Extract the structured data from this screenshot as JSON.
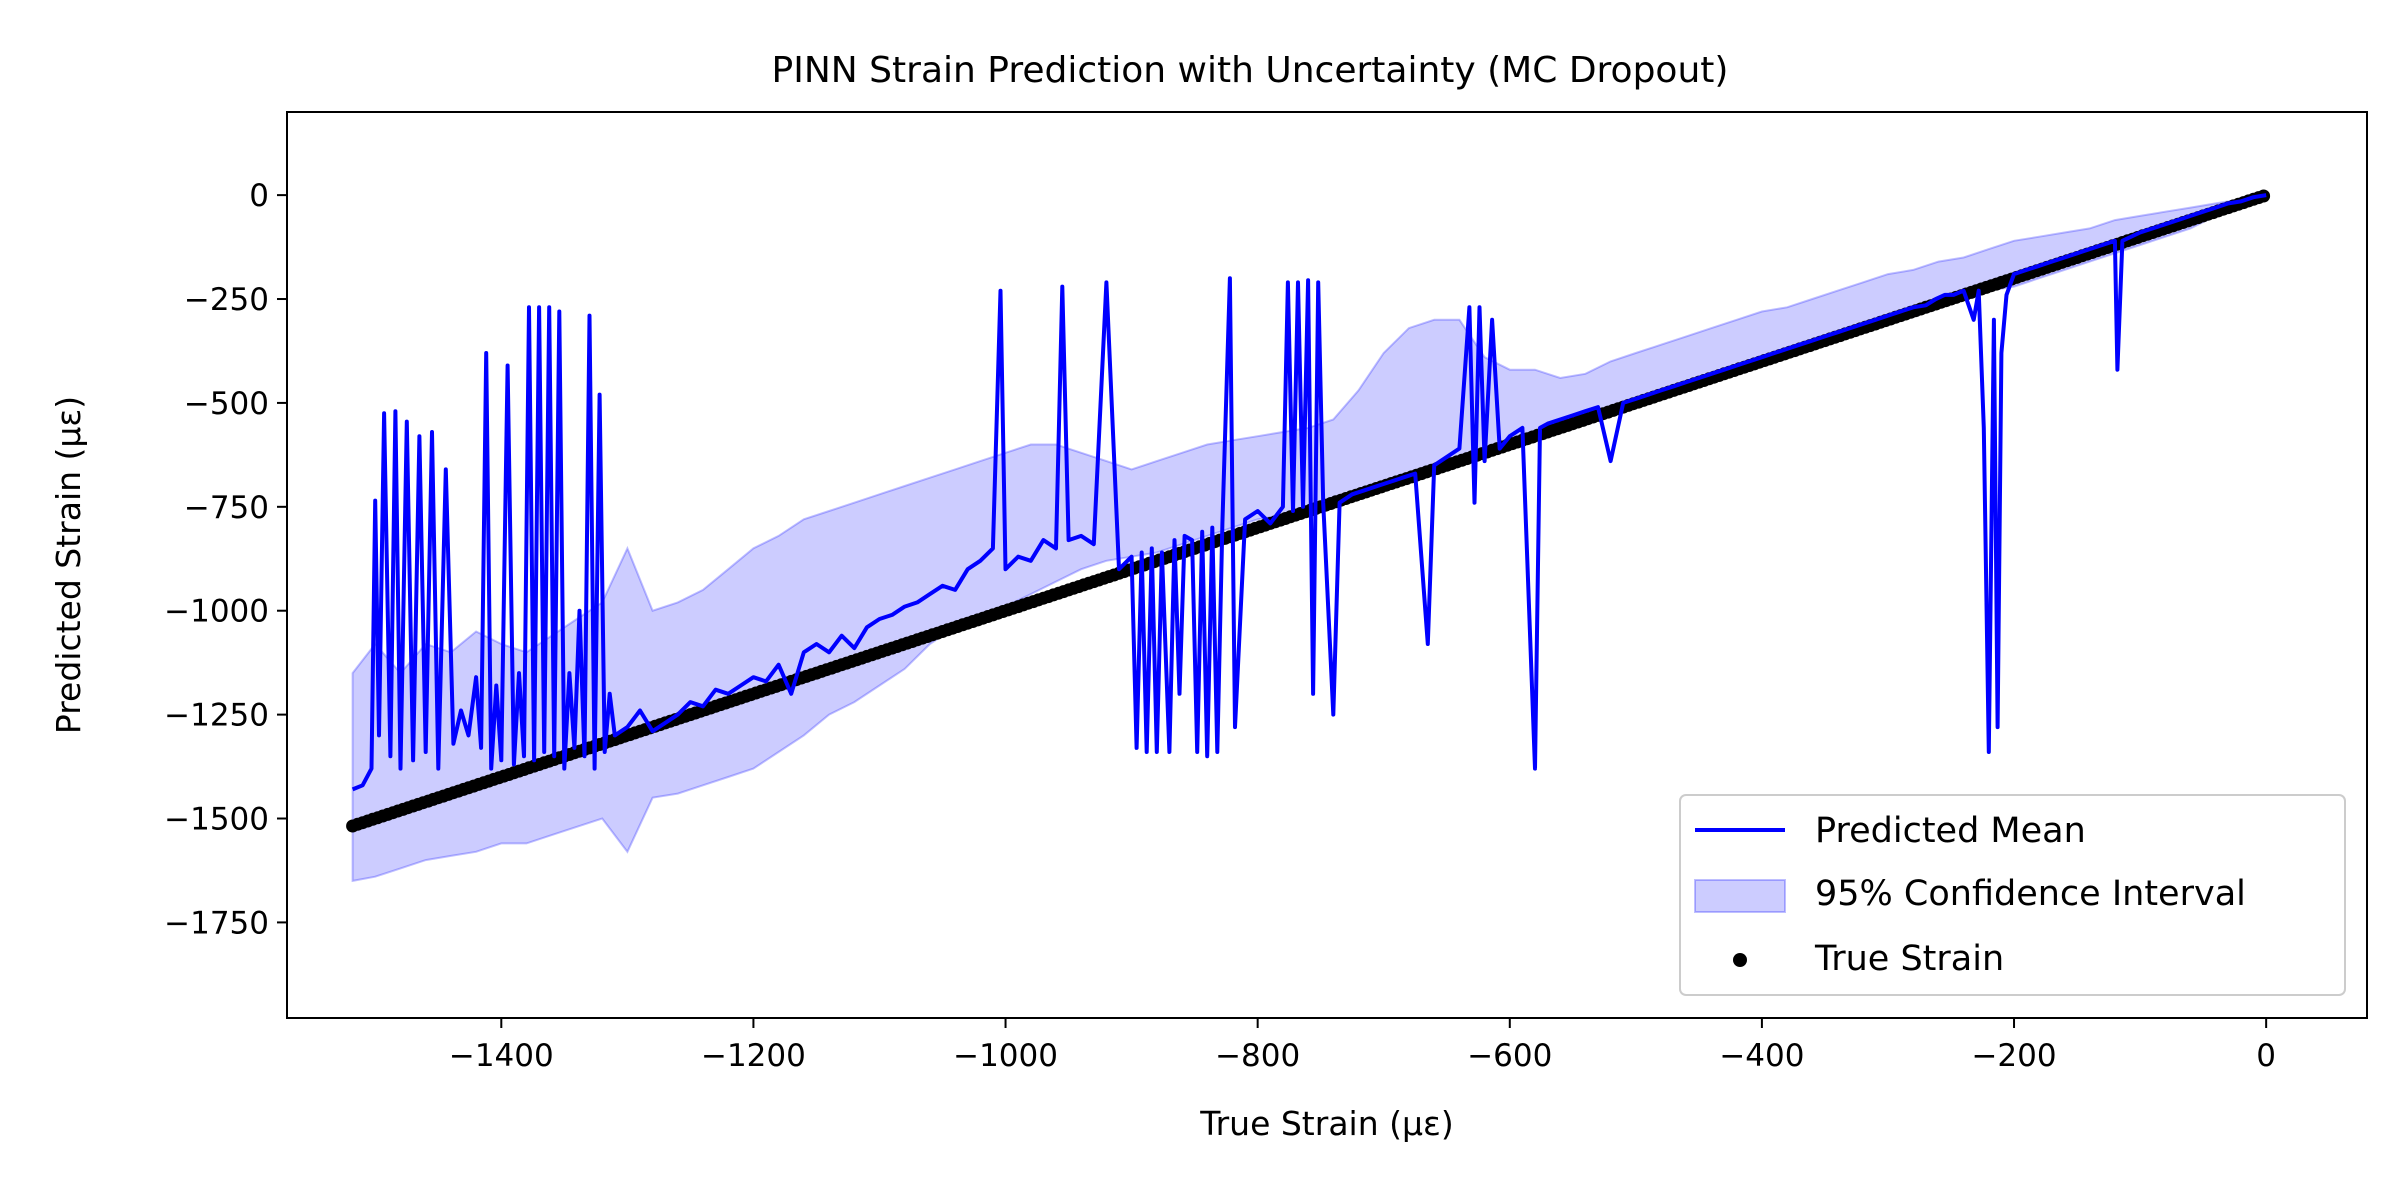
{
  "chart_data": {
    "type": "line",
    "title": "PINN Strain Prediction with Uncertainty (MC Dropout)",
    "xlabel": "True Strain (μɛ)",
    "ylabel": "Predicted Strain (μɛ)",
    "xlim": [
      -1570,
      80
    ],
    "ylim": [
      -1980,
      200
    ],
    "x_ticks": [
      -1400,
      -1200,
      -1000,
      -800,
      -600,
      -400,
      -200,
      0
    ],
    "y_ticks": [
      0,
      -250,
      -500,
      -750,
      -1000,
      -1250,
      -1500,
      -1750
    ],
    "x_tick_labels": [
      "−1400",
      "−1200",
      "−1000",
      "−800",
      "−600",
      "−400",
      "−200",
      "0"
    ],
    "y_tick_labels": [
      "0",
      "−250",
      "−500",
      "−750",
      "−1000",
      "−1250",
      "−1500",
      "−1750"
    ],
    "grid": false,
    "legend_position": "lower-right",
    "legend": [
      "Predicted Mean",
      "95% Confidence Interval",
      "True Strain"
    ],
    "colors": {
      "mean": "#0000ff",
      "ci": "#0000ff",
      "true": "#000000"
    },
    "series": [
      {
        "name": "Predicted Mean",
        "kind": "line",
        "points": [
          [
            -1518,
            -1430
          ],
          [
            -1510,
            -1420
          ],
          [
            -1503,
            -1380
          ],
          [
            -1500,
            -735
          ],
          [
            -1497,
            -1300
          ],
          [
            -1493,
            -525
          ],
          [
            -1488,
            -1350
          ],
          [
            -1484,
            -520
          ],
          [
            -1480,
            -1380
          ],
          [
            -1475,
            -545
          ],
          [
            -1470,
            -1360
          ],
          [
            -1465,
            -580
          ],
          [
            -1460,
            -1340
          ],
          [
            -1455,
            -570
          ],
          [
            -1450,
            -1380
          ],
          [
            -1444,
            -660
          ],
          [
            -1438,
            -1320
          ],
          [
            -1432,
            -1240
          ],
          [
            -1426,
            -1300
          ],
          [
            -1420,
            -1160
          ],
          [
            -1416,
            -1330
          ],
          [
            -1412,
            -380
          ],
          [
            -1408,
            -1380
          ],
          [
            -1404,
            -1180
          ],
          [
            -1400,
            -1360
          ],
          [
            -1395,
            -410
          ],
          [
            -1390,
            -1370
          ],
          [
            -1386,
            -1150
          ],
          [
            -1382,
            -1350
          ],
          [
            -1378,
            -270
          ],
          [
            -1374,
            -1360
          ],
          [
            -1370,
            -270
          ],
          [
            -1366,
            -1340
          ],
          [
            -1362,
            -270
          ],
          [
            -1358,
            -1350
          ],
          [
            -1354,
            -280
          ],
          [
            -1350,
            -1380
          ],
          [
            -1346,
            -1150
          ],
          [
            -1342,
            -1330
          ],
          [
            -1338,
            -1000
          ],
          [
            -1334,
            -1350
          ],
          [
            -1330,
            -290
          ],
          [
            -1326,
            -1380
          ],
          [
            -1322,
            -480
          ],
          [
            -1318,
            -1340
          ],
          [
            -1314,
            -1200
          ],
          [
            -1310,
            -1300
          ],
          [
            -1300,
            -1280
          ],
          [
            -1290,
            -1240
          ],
          [
            -1280,
            -1290
          ],
          [
            -1270,
            -1270
          ],
          [
            -1260,
            -1250
          ],
          [
            -1250,
            -1220
          ],
          [
            -1240,
            -1230
          ],
          [
            -1230,
            -1190
          ],
          [
            -1220,
            -1200
          ],
          [
            -1210,
            -1180
          ],
          [
            -1200,
            -1160
          ],
          [
            -1190,
            -1170
          ],
          [
            -1180,
            -1130
          ],
          [
            -1170,
            -1200
          ],
          [
            -1160,
            -1100
          ],
          [
            -1150,
            -1080
          ],
          [
            -1140,
            -1100
          ],
          [
            -1130,
            -1060
          ],
          [
            -1120,
            -1090
          ],
          [
            -1110,
            -1040
          ],
          [
            -1100,
            -1020
          ],
          [
            -1090,
            -1010
          ],
          [
            -1080,
            -990
          ],
          [
            -1070,
            -980
          ],
          [
            -1060,
            -960
          ],
          [
            -1050,
            -940
          ],
          [
            -1040,
            -950
          ],
          [
            -1030,
            -900
          ],
          [
            -1020,
            -880
          ],
          [
            -1010,
            -850
          ],
          [
            -1004,
            -230
          ],
          [
            -1000,
            -900
          ],
          [
            -990,
            -870
          ],
          [
            -980,
            -880
          ],
          [
            -970,
            -830
          ],
          [
            -960,
            -850
          ],
          [
            -955,
            -220
          ],
          [
            -950,
            -830
          ],
          [
            -940,
            -820
          ],
          [
            -930,
            -840
          ],
          [
            -920,
            -210
          ],
          [
            -910,
            -900
          ],
          [
            -900,
            -870
          ],
          [
            -896,
            -1330
          ],
          [
            -892,
            -860
          ],
          [
            -888,
            -1340
          ],
          [
            -884,
            -850
          ],
          [
            -880,
            -1340
          ],
          [
            -876,
            -860
          ],
          [
            -870,
            -1340
          ],
          [
            -866,
            -830
          ],
          [
            -862,
            -1200
          ],
          [
            -858,
            -820
          ],
          [
            -852,
            -830
          ],
          [
            -848,
            -1340
          ],
          [
            -844,
            -810
          ],
          [
            -840,
            -1350
          ],
          [
            -836,
            -800
          ],
          [
            -832,
            -1340
          ],
          [
            -828,
            -790
          ],
          [
            -822,
            -200
          ],
          [
            -818,
            -1280
          ],
          [
            -810,
            -780
          ],
          [
            -800,
            -760
          ],
          [
            -790,
            -790
          ],
          [
            -780,
            -750
          ],
          [
            -776,
            -210
          ],
          [
            -772,
            -760
          ],
          [
            -768,
            -210
          ],
          [
            -764,
            -750
          ],
          [
            -760,
            -205
          ],
          [
            -756,
            -1200
          ],
          [
            -752,
            -210
          ],
          [
            -748,
            -740
          ],
          [
            -740,
            -1250
          ],
          [
            -735,
            -740
          ],
          [
            -725,
            -720
          ],
          [
            -715,
            -710
          ],
          [
            -705,
            -700
          ],
          [
            -695,
            -690
          ],
          [
            -685,
            -680
          ],
          [
            -675,
            -670
          ],
          [
            -665,
            -1080
          ],
          [
            -660,
            -650
          ],
          [
            -650,
            -630
          ],
          [
            -640,
            -610
          ],
          [
            -632,
            -270
          ],
          [
            -628,
            -740
          ],
          [
            -624,
            -270
          ],
          [
            -620,
            -640
          ],
          [
            -614,
            -300
          ],
          [
            -608,
            -610
          ],
          [
            -600,
            -580
          ],
          [
            -590,
            -560
          ],
          [
            -580,
            -1380
          ],
          [
            -576,
            -560
          ],
          [
            -570,
            -550
          ],
          [
            -560,
            -540
          ],
          [
            -550,
            -530
          ],
          [
            -540,
            -520
          ],
          [
            -530,
            -510
          ],
          [
            -520,
            -640
          ],
          [
            -510,
            -500
          ],
          [
            -500,
            -490
          ],
          [
            -490,
            -480
          ],
          [
            -480,
            -470
          ],
          [
            -470,
            -460
          ],
          [
            -460,
            -450
          ],
          [
            -450,
            -440
          ],
          [
            -440,
            -430
          ],
          [
            -430,
            -420
          ],
          [
            -420,
            -410
          ],
          [
            -410,
            -400
          ],
          [
            -400,
            -390
          ],
          [
            -390,
            -380
          ],
          [
            -380,
            -370
          ],
          [
            -370,
            -360
          ],
          [
            -360,
            -350
          ],
          [
            -350,
            -340
          ],
          [
            -340,
            -330
          ],
          [
            -330,
            -320
          ],
          [
            -320,
            -310
          ],
          [
            -310,
            -300
          ],
          [
            -300,
            -290
          ],
          [
            -290,
            -280
          ],
          [
            -280,
            -270
          ],
          [
            -270,
            -265
          ],
          [
            -262,
            -250
          ],
          [
            -255,
            -240
          ],
          [
            -248,
            -240
          ],
          [
            -240,
            -230
          ],
          [
            -232,
            -300
          ],
          [
            -228,
            -230
          ],
          [
            -224,
            -560
          ],
          [
            -220,
            -1340
          ],
          [
            -216,
            -300
          ],
          [
            -213,
            -1280
          ],
          [
            -210,
            -380
          ],
          [
            -206,
            -240
          ],
          [
            -200,
            -190
          ],
          [
            -190,
            -180
          ],
          [
            -180,
            -170
          ],
          [
            -170,
            -160
          ],
          [
            -160,
            -150
          ],
          [
            -150,
            -140
          ],
          [
            -140,
            -130
          ],
          [
            -130,
            -120
          ],
          [
            -120,
            -110
          ],
          [
            -118,
            -420
          ],
          [
            -114,
            -110
          ],
          [
            -100,
            -90
          ],
          [
            -90,
            -80
          ],
          [
            -80,
            -70
          ],
          [
            -70,
            -60
          ],
          [
            -60,
            -50
          ],
          [
            -50,
            -40
          ],
          [
            -40,
            -30
          ],
          [
            -30,
            -20
          ],
          [
            -20,
            -15
          ],
          [
            -10,
            -5
          ],
          [
            0,
            0
          ]
        ]
      },
      {
        "name": "95% Confidence Interval",
        "kind": "band",
        "x": [
          -1518,
          -1500,
          -1480,
          -1460,
          -1440,
          -1420,
          -1400,
          -1380,
          -1360,
          -1340,
          -1320,
          -1300,
          -1280,
          -1260,
          -1240,
          -1220,
          -1200,
          -1180,
          -1160,
          -1140,
          -1120,
          -1100,
          -1080,
          -1060,
          -1040,
          -1020,
          -1000,
          -980,
          -960,
          -940,
          -920,
          -900,
          -880,
          -860,
          -840,
          -820,
          -800,
          -780,
          -760,
          -740,
          -720,
          -700,
          -680,
          -660,
          -640,
          -620,
          -600,
          -580,
          -560,
          -540,
          -520,
          -500,
          -480,
          -460,
          -440,
          -420,
          -400,
          -380,
          -360,
          -340,
          -320,
          -300,
          -280,
          -260,
          -240,
          -220,
          -200,
          -180,
          -160,
          -140,
          -120,
          -100,
          -80,
          -60,
          -40,
          -20,
          0
        ],
        "lower": [
          -1650,
          -1640,
          -1620,
          -1600,
          -1590,
          -1580,
          -1560,
          -1560,
          -1540,
          -1520,
          -1500,
          -1580,
          -1450,
          -1440,
          -1420,
          -1400,
          -1380,
          -1340,
          -1300,
          -1250,
          -1220,
          -1180,
          -1140,
          -1080,
          -1040,
          -1010,
          -990,
          -960,
          -930,
          -900,
          -880,
          -870,
          -860,
          -840,
          -820,
          -800,
          -780,
          -770,
          -750,
          -730,
          -710,
          -690,
          -680,
          -660,
          -650,
          -620,
          -600,
          -580,
          -560,
          -550,
          -520,
          -500,
          -480,
          -460,
          -440,
          -420,
          -400,
          -380,
          -360,
          -340,
          -320,
          -300,
          -280,
          -260,
          -240,
          -230,
          -220,
          -200,
          -180,
          -160,
          -140,
          -120,
          -100,
          -80,
          -50,
          -30,
          -10
        ],
        "upper": [
          -1150,
          -1080,
          -1150,
          -1080,
          -1100,
          -1050,
          -1080,
          -1100,
          -1060,
          -1020,
          -980,
          -850,
          -1000,
          -980,
          -950,
          -900,
          -850,
          -820,
          -780,
          -760,
          -740,
          -720,
          -700,
          -680,
          -660,
          -640,
          -620,
          -600,
          -600,
          -620,
          -640,
          -660,
          -640,
          -620,
          -600,
          -590,
          -580,
          -570,
          -560,
          -540,
          -470,
          -380,
          -320,
          -300,
          -300,
          -390,
          -420,
          -420,
          -440,
          -430,
          -400,
          -380,
          -360,
          -340,
          -320,
          -300,
          -280,
          -270,
          -250,
          -230,
          -210,
          -190,
          -180,
          -160,
          -150,
          -130,
          -110,
          -100,
          -90,
          -80,
          -60,
          -50,
          -40,
          -30,
          -20,
          -10,
          5
        ]
      },
      {
        "name": "True Strain",
        "kind": "scatter",
        "x_range": [
          -1518,
          0
        ],
        "relation": "y = x"
      }
    ]
  }
}
